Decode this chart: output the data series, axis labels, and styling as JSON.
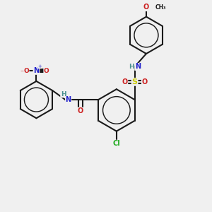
{
  "background_color": "#f0f0f0",
  "bond_color": "#1a1a1a",
  "bond_width": 1.5,
  "atom_colors": {
    "C": "#1a1a1a",
    "H": "#4a9090",
    "N": "#2020cc",
    "O": "#cc2020",
    "S": "#cccc00",
    "Cl": "#20aa20"
  },
  "font_size": 7,
  "fig_width": 3.0,
  "fig_height": 3.0,
  "dpi": 100
}
